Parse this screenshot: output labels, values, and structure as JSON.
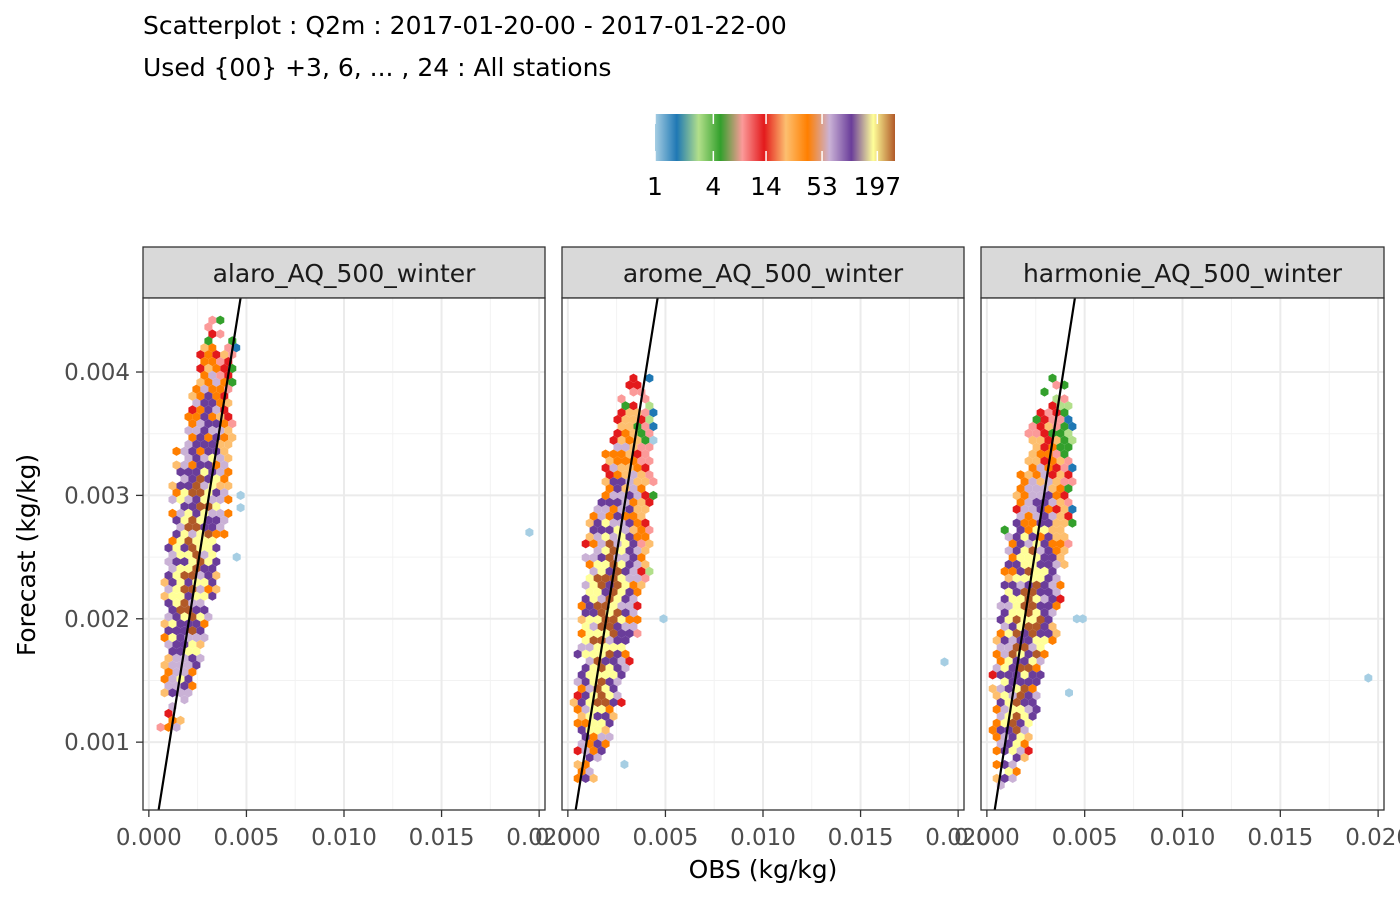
{
  "title": {
    "line1": "Scatterplot : Q2m : 2017-01-20-00 - 2017-01-22-00",
    "line2": "Used {00} +3, 6, ... , 24 : All stations"
  },
  "legend": {
    "tick_labels": [
      "1",
      "4",
      "14",
      "53",
      "197"
    ],
    "colors": [
      "#a6cee3",
      "#1f78b4",
      "#b2df8a",
      "#33a02c",
      "#fb9a99",
      "#e31a1c",
      "#fdbf6f",
      "#ff7f00",
      "#cab2d6",
      "#6a3d9a",
      "#ffff99",
      "#b15928"
    ],
    "scale": "log"
  },
  "chart_data": {
    "type": "hexbin-scatter",
    "xlabel": "OBS (kg/kg)",
    "ylabel": "Forecast (kg/kg)",
    "xlim": [
      -0.0003,
      0.0203
    ],
    "ylim": [
      0.00045,
      0.0046
    ],
    "x_ticks": [
      "0.000",
      "0.005",
      "0.010",
      "0.015",
      "0.020"
    ],
    "x_tick_values": [
      0.0,
      0.005,
      0.01,
      0.015,
      0.02
    ],
    "y_ticks": [
      "0.001",
      "0.002",
      "0.003",
      "0.004"
    ],
    "y_tick_values": [
      0.001,
      0.002,
      0.003,
      0.004
    ],
    "grid": true,
    "panels": [
      {
        "name": "alaro_AQ_500_winter",
        "line": {
          "p1": [
            0.0005,
            0.00045
          ],
          "p2": [
            0.0047,
            0.0046
          ]
        },
        "cloud": {
          "x_min": 0.0005,
          "x_max": 0.0045,
          "y_min": 0.00112,
          "y_max": 0.00442,
          "peak": [
            0.0022,
            0.0025
          ]
        },
        "outliers": [
          [
            0.0195,
            0.0027
          ],
          [
            0.0047,
            0.0029
          ],
          [
            0.0045,
            0.0025
          ],
          [
            0.0047,
            0.003
          ]
        ]
      },
      {
        "name": "arome_AQ_500_winter",
        "line": {
          "p1": [
            0.0004,
            0.00045
          ],
          "p2": [
            0.0046,
            0.0046
          ]
        },
        "cloud": {
          "x_min": 0.0002,
          "x_max": 0.0045,
          "y_min": 0.00068,
          "y_max": 0.00395,
          "peak": [
            0.0017,
            0.002
          ]
        },
        "outliers": [
          [
            0.0193,
            0.00165
          ],
          [
            0.0049,
            0.002
          ],
          [
            0.0029,
            0.00082
          ]
        ]
      },
      {
        "name": "harmonie_AQ_500_winter",
        "line": {
          "p1": [
            0.0004,
            0.00045
          ],
          "p2": [
            0.0045,
            0.0046
          ]
        },
        "cloud": {
          "x_min": 0.0002,
          "x_max": 0.0045,
          "y_min": 0.00065,
          "y_max": 0.00395,
          "peak": [
            0.0018,
            0.0018
          ]
        },
        "outliers": [
          [
            0.0195,
            0.00152
          ],
          [
            0.0046,
            0.002
          ],
          [
            0.0049,
            0.002
          ],
          [
            0.0042,
            0.0014
          ]
        ]
      }
    ]
  }
}
